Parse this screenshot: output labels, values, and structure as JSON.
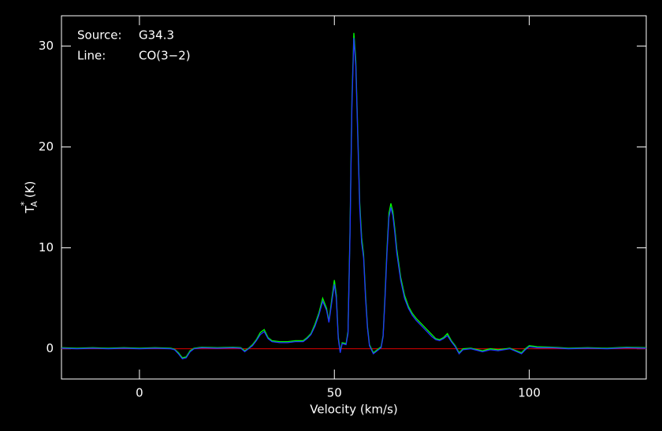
{
  "chart_data": {
    "type": "line",
    "annotations": [
      {
        "label": "Source:",
        "value": "G34.3"
      },
      {
        "label": "Line:",
        "value": "CO(3−2)"
      }
    ],
    "xlabel": "Velocity (km/s)",
    "ylabel": {
      "base": "T",
      "sup": "*",
      "sub": "A",
      "unit": "(K)"
    },
    "xlim": [
      -20,
      130
    ],
    "xticks": [
      0,
      50,
      100
    ],
    "ylim": [
      -3,
      33
    ],
    "yticks": [
      0,
      10,
      20,
      30
    ],
    "x": [
      -20,
      -16,
      -12,
      -8,
      -4,
      0,
      4,
      8,
      9,
      10,
      11,
      12,
      13,
      14,
      16,
      20,
      24,
      26,
      27,
      28,
      29,
      30,
      31,
      32,
      33,
      34,
      36,
      38,
      40,
      42,
      43,
      44,
      45,
      46,
      47,
      48,
      48.6,
      49.3,
      50,
      50.5,
      51,
      51.5,
      52,
      53,
      53.5,
      54,
      54.5,
      55,
      55.5,
      56,
      56.5,
      57,
      57.5,
      58,
      58.5,
      59,
      60,
      61,
      62,
      62.5,
      63,
      63.5,
      64,
      64.5,
      65,
      65.5,
      66,
      67,
      68,
      69,
      70,
      71,
      72,
      73,
      74,
      75,
      76,
      77,
      78,
      79,
      80,
      81,
      82,
      83,
      85,
      88,
      90,
      92,
      95,
      98,
      99,
      100,
      102,
      106,
      110,
      115,
      120,
      125,
      130
    ],
    "series": [
      {
        "name": "green",
        "color": "#00ff00",
        "values": [
          0.1,
          0.05,
          0.1,
          0.05,
          0.1,
          0.05,
          0.1,
          0.05,
          -0.05,
          -0.4,
          -0.9,
          -0.8,
          -0.2,
          0.05,
          0.15,
          0.1,
          0.15,
          0.1,
          -0.2,
          0.05,
          0.4,
          0.9,
          1.6,
          1.9,
          1.1,
          0.8,
          0.7,
          0.7,
          0.8,
          0.8,
          1.1,
          1.5,
          2.4,
          3.5,
          5.0,
          4.0,
          2.7,
          4.8,
          6.8,
          5.3,
          1.2,
          -0.3,
          0.6,
          0.5,
          1.7,
          11.5,
          24.5,
          31.3,
          28.5,
          21.5,
          14.5,
          11,
          9.3,
          5.3,
          2.2,
          0.4,
          -0.4,
          -0.1,
          0.2,
          1.3,
          5.3,
          9.9,
          13.4,
          14.4,
          13.6,
          11.9,
          9.9,
          7.1,
          5.3,
          4.2,
          3.5,
          3.0,
          2.6,
          2.2,
          1.8,
          1.4,
          1.0,
          0.9,
          1.1,
          1.5,
          0.8,
          0.3,
          -0.4,
          0,
          0.05,
          -0.2,
          0,
          -0.1,
          0.05,
          -0.4,
          0,
          0.3,
          0.2,
          0.15,
          0.05,
          0.1,
          0.05,
          0.15,
          0.1
        ]
      },
      {
        "name": "blue",
        "color": "#2233ff",
        "values": [
          0.05,
          0,
          0.05,
          0,
          0.05,
          0,
          0.05,
          0,
          -0.1,
          -0.5,
          -1.0,
          -0.9,
          -0.3,
          0,
          0.1,
          0.05,
          0.1,
          0.05,
          -0.3,
          0,
          0.3,
          0.8,
          1.4,
          1.7,
          1.0,
          0.7,
          0.6,
          0.6,
          0.7,
          0.7,
          1.0,
          1.4,
          2.2,
          3.3,
          4.7,
          3.8,
          2.6,
          4.5,
          6.4,
          5.0,
          1.0,
          -0.4,
          0.5,
          0.4,
          1.5,
          11,
          24,
          30.8,
          28,
          21,
          14,
          10.5,
          9,
          5,
          2,
          0.3,
          -0.5,
          -0.2,
          0.1,
          1.2,
          5,
          9.5,
          13,
          14,
          13.2,
          11.5,
          9.5,
          6.8,
          5,
          4,
          3.3,
          2.8,
          2.4,
          2,
          1.6,
          1.2,
          0.9,
          0.8,
          1.0,
          1.3,
          0.7,
          0.2,
          -0.5,
          -0.1,
          0,
          -0.3,
          -0.1,
          -0.2,
          0,
          -0.5,
          -0.1,
          0.2,
          0.1,
          0.1,
          0,
          0.05,
          0,
          0.1,
          0.05
        ]
      }
    ]
  }
}
